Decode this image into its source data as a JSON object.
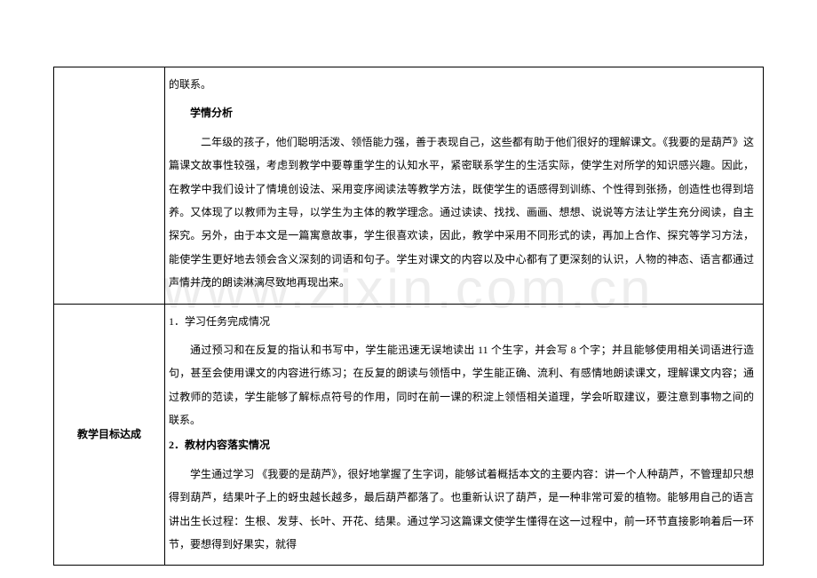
{
  "watermark": "www.zixin.com.cn",
  "row1": {
    "frag_top": "的联系。",
    "heading": "学情分析",
    "para": "二年级的孩子，他们聪明活泼、领悟能力强，善于表现自己，这些都有助于他们很好的理解课文。《我要的是葫芦》这篇课文故事性较强，考虑到教学中要尊重学生的认知水平，紧密联系学生的生活实际，使学生对所学的知识感兴趣。因此，在教学中我们设计了情境创设法、采用变序阅读法等教学方法，既使学生的语感得到训练、个性得到张扬，创造性也得到培养。又体现了以教师为主导，以学生为主体的教学理念。通过读读、找找、画画、想想、说说等方法让学生充分阅读，自主探究。另外，由于本文是一篇寓意故事，学生很喜欢读，因此，教学中采用不同形式的读，再加上合作、探究等学习方法，能使学生更好地去领会含义深刻的词语和句子。学生对课文的内容以及中心都有了更深刻的认识，人物的神态、语言都通过声情并茂的朗读淋漓尽致地再现出来。"
  },
  "row2": {
    "label": "教学目标达成",
    "item1_label": "1．学习任务完成情况",
    "item1_para": "通过预习和在反复的指认和书写中，学生能迅速无误地读出 11 个生字，并会写 8 个字；并且能够使用相关词语进行造句，甚至会使用课文的内容进行练习；在反复的朗读与领悟中，学生能正确、流利、有感情地朗读课文，理解课文内容；通过教师的范读，学生能够了解标点符号的作用，同时在前一课的积淀上领悟相关道理，学会听取建议，要注意到事物之间的联系。",
    "item2_label": "2．教材内容落实情况",
    "item2_para": "学生通过学习 《我要的是葫芦》，很好地掌握了生字词，能够试着概括本文的主要内容：讲一个人种葫芦，不管理却只想得到葫芦，结果叶子上的蚜虫越长越多，最后葫芦都落了。也重新认识了葫芦，是一种非常可爱的植物。能够用自己的语言讲出生长过程：生根、发芽、长叶、开花、结果。通过学习这篇课文使学生懂得在这一过程中，前一环节直接影响着后一环节，要想得到好果实，就得"
  }
}
